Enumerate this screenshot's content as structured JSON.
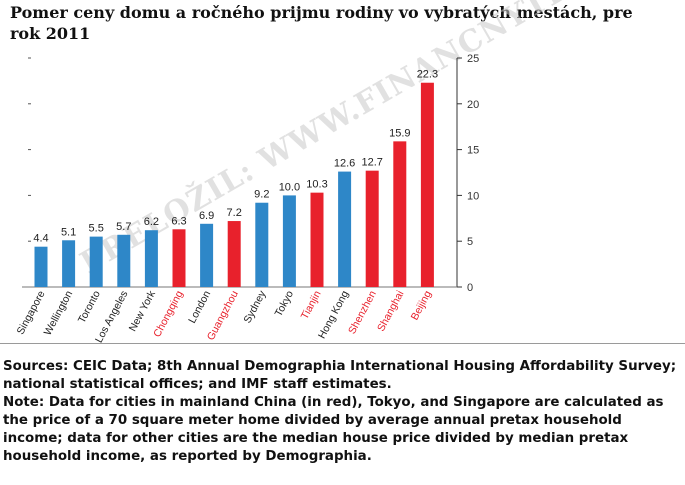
{
  "chart_data": {
    "type": "bar",
    "title": "Pomer ceny domu a ročného prijmu rodiny vo vybratých mestách, pre rok 2011",
    "categories": [
      "Singapore",
      "Wellington",
      "Toronto",
      "Los Angeles",
      "New York",
      "Chongqing",
      "London",
      "Guangzhou",
      "Sydney",
      "Tokyo",
      "Tianjin",
      "Hong Kong",
      "Shenzhen",
      "Shanghai",
      "Beijing"
    ],
    "values": [
      4.4,
      5.1,
      5.5,
      5.7,
      6.2,
      6.3,
      6.9,
      7.2,
      9.2,
      10.0,
      10.3,
      12.6,
      12.7,
      15.9,
      22.3
    ],
    "value_labels": [
      "4.4",
      "5.1",
      "5.5",
      "5.7",
      "6.2",
      "6.3",
      "6.9",
      "7.2",
      "9.2",
      "10.0",
      "10.3",
      "12.6",
      "12.7",
      "15.9",
      "22.3"
    ],
    "mainland_china": [
      false,
      false,
      false,
      false,
      false,
      true,
      false,
      true,
      false,
      false,
      true,
      false,
      true,
      true,
      true
    ],
    "ylim": [
      0,
      25
    ],
    "yticks": [
      "0",
      "5",
      "10",
      "15",
      "20",
      "25"
    ],
    "y_axis_side": "right",
    "grid": false,
    "colors": {
      "other": "#2e87c8",
      "mainland_china": "#e8212c",
      "text_china": "#e8212c",
      "text_other": "#222222"
    },
    "watermark": "PRELOŽIL: WWW.FINANCNYTRH.COM"
  },
  "notes": {
    "sources": "Sources: CEIC Data; 8th Annual Demographia International Housing Affordability Survey; national statistical offices; and IMF staff estimates.",
    "note": "Note: Data for cities in mainland China (in red), Tokyo, and Singapore are calculated as the price of a 70 square meter home divided by average annual pretax household income; data for other cities are the median house price divided by median pretax household income, as reported by Demographia."
  }
}
